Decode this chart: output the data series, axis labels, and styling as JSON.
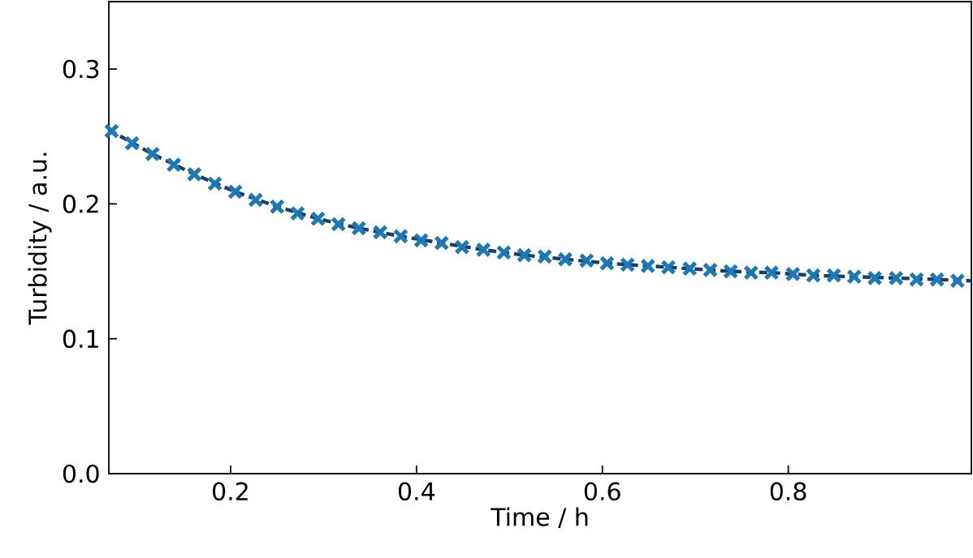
{
  "chart_data": {
    "type": "scatter",
    "xlabel": "Time / h",
    "ylabel": "Turbidity / a.u.",
    "xlim": [
      0.069,
      0.997
    ],
    "ylim": [
      0,
      0.35
    ],
    "xticks": [
      0.2,
      0.4,
      0.6,
      0.8
    ],
    "yticks": [
      {
        "value": 0,
        "label": "0.0"
      },
      0.1,
      0.2,
      0.3
    ],
    "grid": false,
    "series": [
      {
        "type": "line",
        "color": "#1b3f66",
        "line_style": "dashed",
        "marker": "none",
        "x": [
          0.069,
          0.116,
          0.161,
          0.205,
          0.25,
          0.294,
          0.338,
          0.383,
          0.427,
          0.472,
          0.516,
          0.56,
          0.605,
          0.649,
          0.694,
          0.738,
          0.782,
          0.827,
          0.871,
          0.916,
          0.96,
          0.997
        ],
        "values": [
          0.255,
          0.237,
          0.222,
          0.209,
          0.198,
          0.189,
          0.182,
          0.176,
          0.171,
          0.166,
          0.162,
          0.159,
          0.156,
          0.154,
          0.152,
          0.15,
          0.149,
          0.147,
          0.146,
          0.145,
          0.144,
          0.143
        ]
      },
      {
        "color": "#1f77b4",
        "marker": "cross",
        "x": [
          0.072,
          0.094,
          0.116,
          0.139,
          0.161,
          0.183,
          0.205,
          0.227,
          0.25,
          0.272,
          0.294,
          0.316,
          0.338,
          0.361,
          0.383,
          0.405,
          0.427,
          0.449,
          0.472,
          0.494,
          0.516,
          0.538,
          0.56,
          0.583,
          0.605,
          0.627,
          0.649,
          0.671,
          0.694,
          0.716,
          0.738,
          0.76,
          0.782,
          0.805,
          0.827,
          0.849,
          0.871,
          0.893,
          0.916,
          0.938,
          0.96,
          0.982
        ],
        "values": [
          0.254,
          0.245,
          0.237,
          0.229,
          0.222,
          0.215,
          0.209,
          0.203,
          0.198,
          0.193,
          0.189,
          0.185,
          0.182,
          0.179,
          0.176,
          0.173,
          0.171,
          0.168,
          0.166,
          0.164,
          0.162,
          0.161,
          0.159,
          0.158,
          0.156,
          0.155,
          0.154,
          0.153,
          0.152,
          0.151,
          0.15,
          0.149,
          0.149,
          0.148,
          0.147,
          0.147,
          0.146,
          0.145,
          0.145,
          0.144,
          0.144,
          0.143
        ]
      }
    ]
  }
}
